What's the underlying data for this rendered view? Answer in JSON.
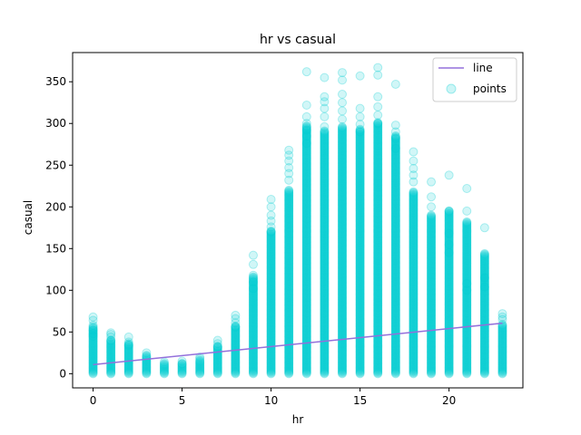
{
  "chart_data": {
    "type": "scatter",
    "title": "hr vs casual",
    "xlabel": "hr",
    "ylabel": "casual",
    "xlim": [
      -1.15,
      24.15
    ],
    "ylim": [
      -17,
      385
    ],
    "xticks": [
      0,
      5,
      10,
      15,
      20
    ],
    "yticks": [
      0,
      50,
      100,
      150,
      200,
      250,
      300,
      350
    ],
    "grid": false,
    "legend_position": "top-right",
    "colors": {
      "line": "#9370db",
      "points": "#00ced1"
    },
    "series": [
      {
        "name": "line",
        "kind": "line",
        "x": [
          0,
          23
        ],
        "y": [
          10.9,
          60.6
        ]
      },
      {
        "name": "points",
        "kind": "scatter",
        "columns": [
          {
            "x": 0,
            "max": 68,
            "outliers": [
              68,
              64,
              58,
              52,
              48,
              45
            ]
          },
          {
            "x": 1,
            "max": 49,
            "outliers": [
              49,
              47,
              44,
              40
            ]
          },
          {
            "x": 2,
            "max": 44,
            "outliers": [
              44,
              38,
              34
            ]
          },
          {
            "x": 3,
            "max": 25,
            "outliers": [
              25,
              22
            ]
          },
          {
            "x": 4,
            "max": 14,
            "outliers": [
              14,
              12
            ]
          },
          {
            "x": 5,
            "max": 15,
            "outliers": [
              15,
              12
            ]
          },
          {
            "x": 6,
            "max": 20,
            "outliers": [
              20,
              18
            ]
          },
          {
            "x": 7,
            "max": 40,
            "outliers": [
              40,
              36,
              32
            ]
          },
          {
            "x": 8,
            "max": 70,
            "outliers": [
              70,
              66,
              61,
              56
            ]
          },
          {
            "x": 9,
            "max": 142,
            "outliers": [
              142,
              131,
              118,
              110,
              102
            ]
          },
          {
            "x": 10,
            "max": 209,
            "outliers": [
              209,
              200,
              190,
              183,
              176,
              170
            ]
          },
          {
            "x": 11,
            "max": 268,
            "outliers": [
              268,
              262,
              255,
              247,
              240,
              232
            ]
          },
          {
            "x": 12,
            "max": 362,
            "outliers": [
              362,
              322,
              308,
              300,
              292,
              285,
              276
            ]
          },
          {
            "x": 13,
            "max": 355,
            "outliers": [
              355,
              332,
              326,
              318,
              308,
              296
            ]
          },
          {
            "x": 14,
            "max": 361,
            "outliers": [
              361,
              352,
              335,
              325,
              315,
              305
            ]
          },
          {
            "x": 15,
            "max": 357,
            "outliers": [
              357,
              318,
              308,
              299,
              290
            ]
          },
          {
            "x": 16,
            "max": 367,
            "outliers": [
              367,
              358,
              332,
              320,
              310,
              300
            ]
          },
          {
            "x": 17,
            "max": 347,
            "outliers": [
              347,
              298,
              290,
              282,
              270
            ]
          },
          {
            "x": 18,
            "max": 266,
            "outliers": [
              266,
              255,
              246,
              238,
              230
            ]
          },
          {
            "x": 19,
            "max": 230,
            "outliers": [
              230,
              212,
              200,
              190
            ]
          },
          {
            "x": 20,
            "max": 238,
            "outliers": [
              238,
              195,
              168,
              155,
              145
            ]
          },
          {
            "x": 21,
            "max": 222,
            "outliers": [
              222,
              195,
              108,
              100
            ]
          },
          {
            "x": 22,
            "max": 175,
            "outliers": [
              175,
              115,
              104
            ]
          },
          {
            "x": 23,
            "max": 72,
            "outliers": [
              72,
              68,
              65
            ]
          }
        ]
      }
    ]
  }
}
